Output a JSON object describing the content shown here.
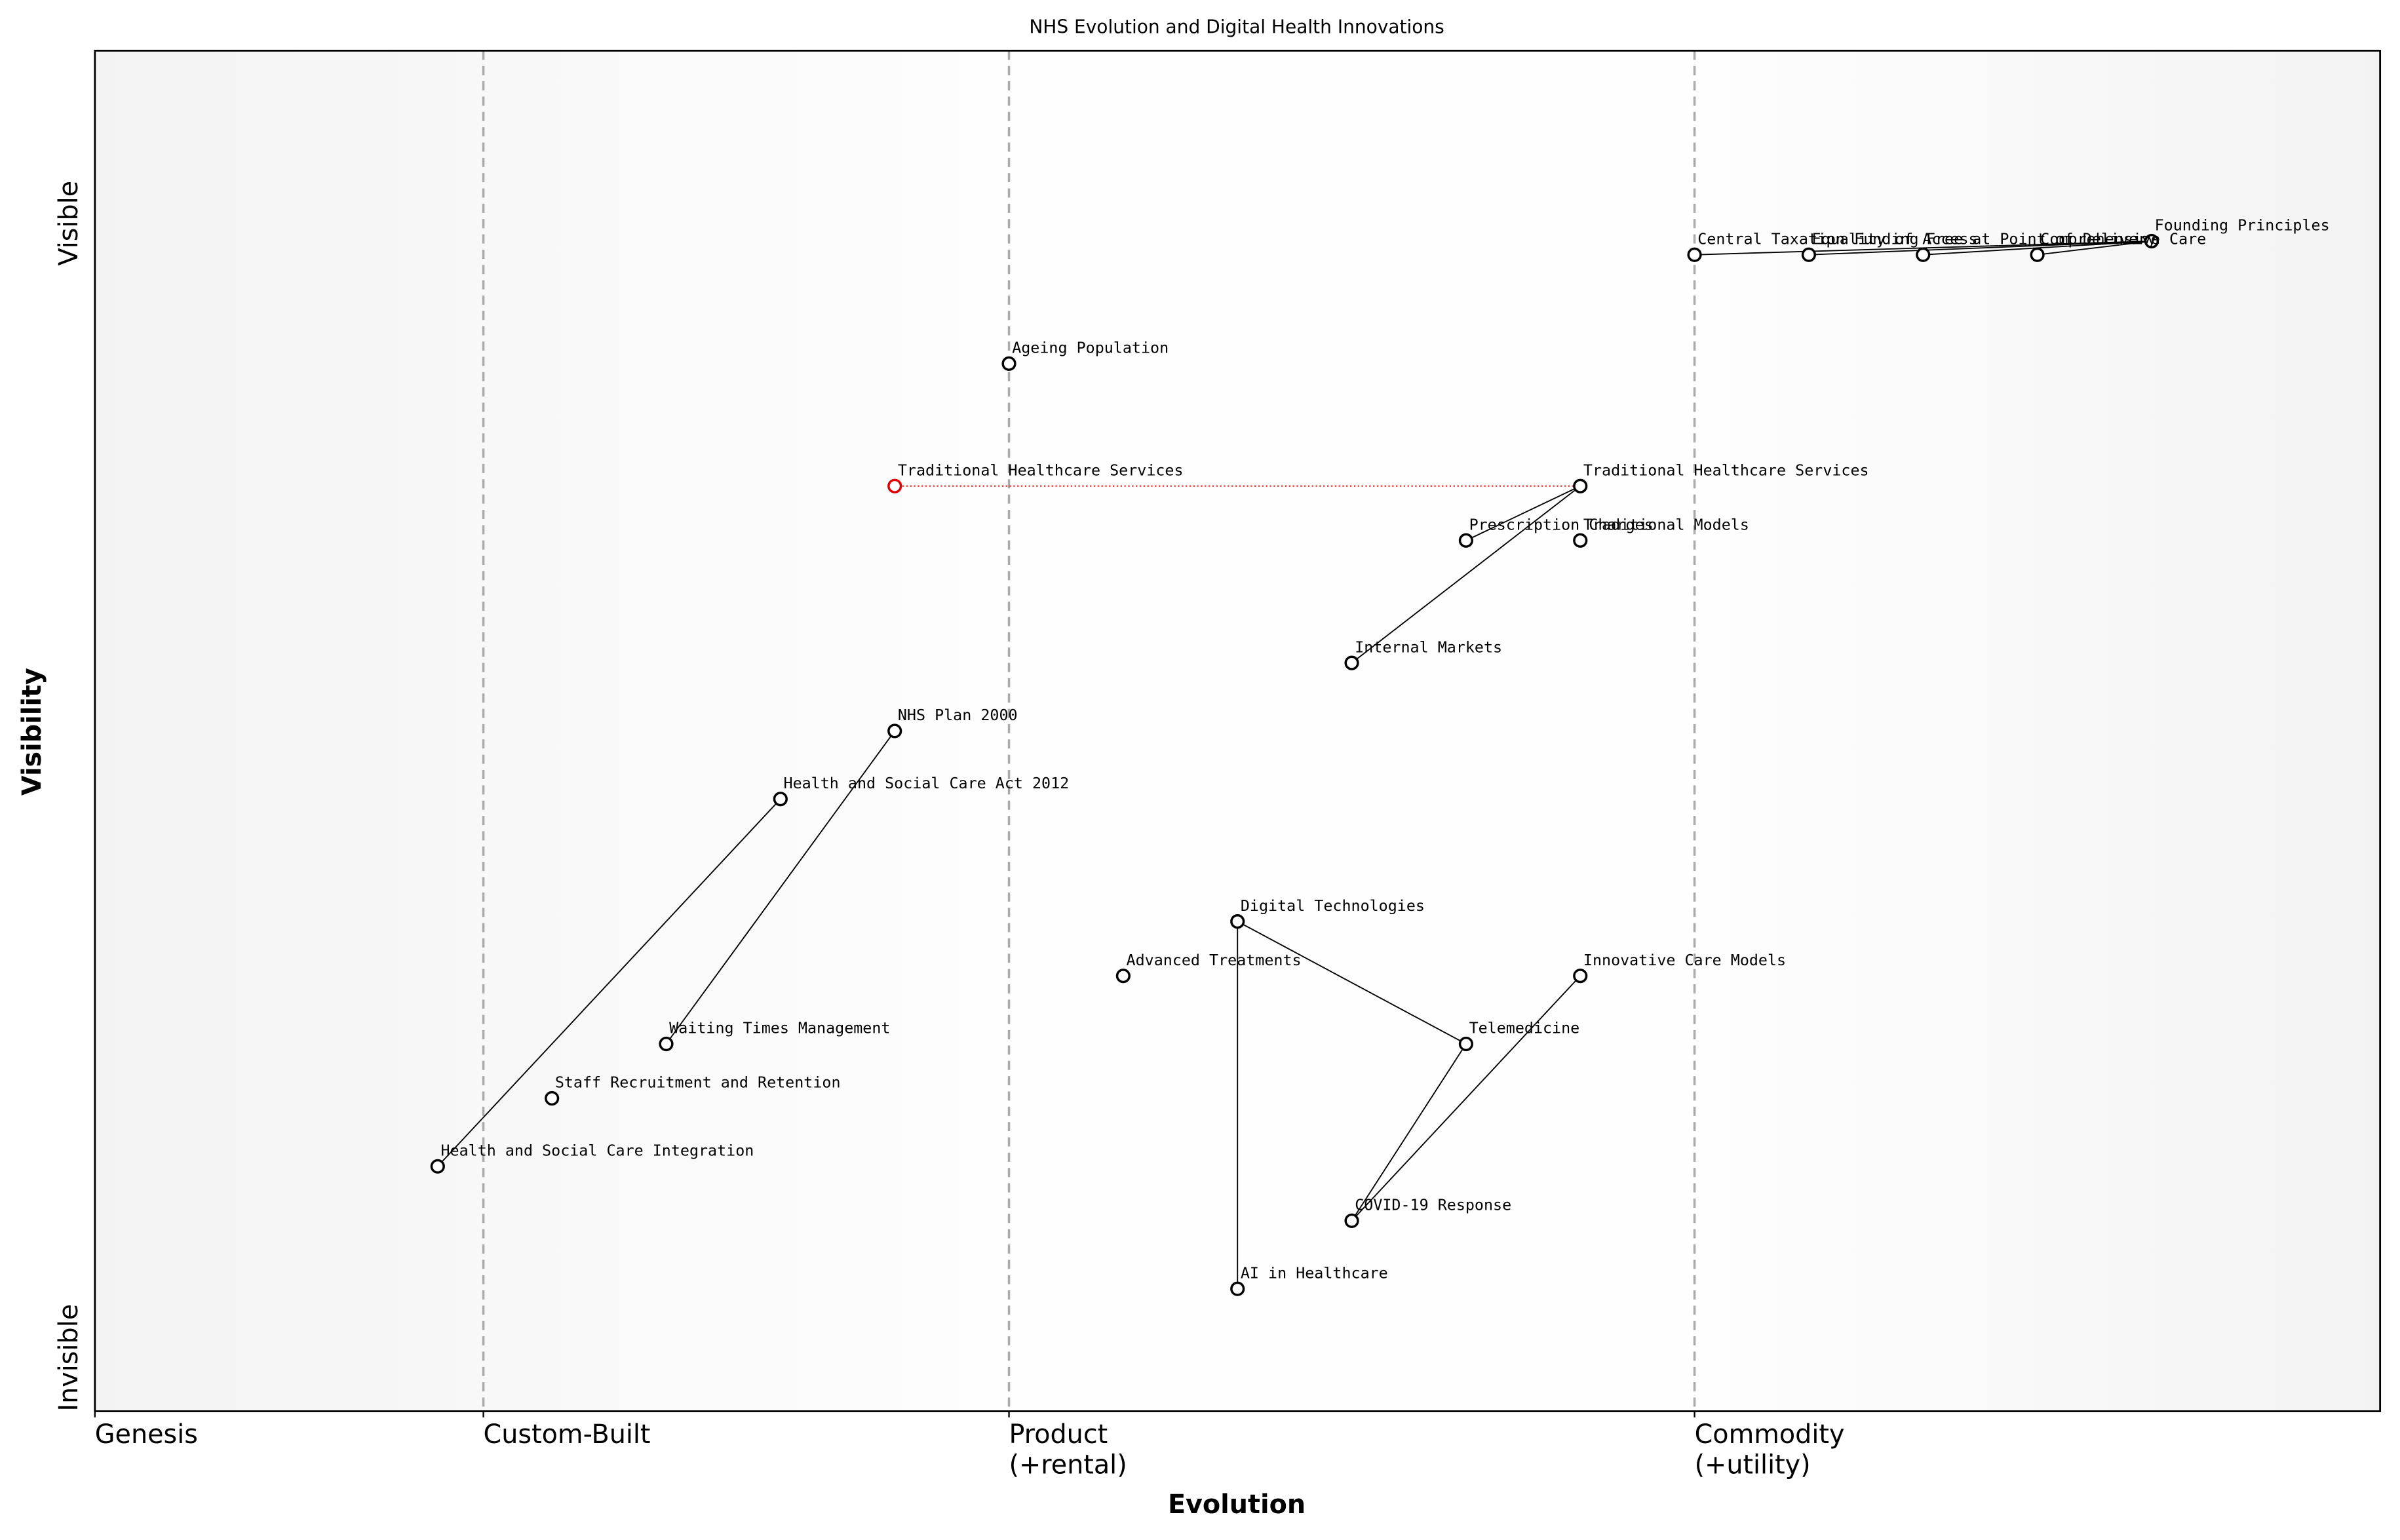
{
  "chart_data": {
    "type": "wardley",
    "title": "NHS Evolution and Digital Health Innovations",
    "xlabel": "Evolution",
    "ylabel": "Visibility",
    "y_ends": [
      "Invisible",
      "Visible"
    ],
    "xlim": [
      0,
      1
    ],
    "ylim": [
      0,
      1
    ],
    "xticks": [
      {
        "value": 0,
        "label": "Genesis"
      },
      {
        "value": 0.17,
        "label": "Custom-Built"
      },
      {
        "value": 0.4,
        "label": "Product\n(+rental)"
      },
      {
        "value": 0.7,
        "label": "Commodity\n(+utility)"
      }
    ],
    "components": [
      {
        "name": "Founding Principles",
        "evolution": 0.9,
        "visibility": 0.86
      },
      {
        "name": "Central Taxation Funding",
        "evolution": 0.7,
        "visibility": 0.85
      },
      {
        "name": "Equality of Access",
        "evolution": 0.75,
        "visibility": 0.85
      },
      {
        "name": "Free at Point of Delivery",
        "evolution": 0.8,
        "visibility": 0.85
      },
      {
        "name": "Comprehensive Care",
        "evolution": 0.85,
        "visibility": 0.85
      },
      {
        "name": "Ageing Population",
        "evolution": 0.4,
        "visibility": 0.77
      },
      {
        "name": "Traditional Healthcare Services",
        "evolution": 0.65,
        "visibility": 0.68
      },
      {
        "name": "Prescription Charges",
        "evolution": 0.6,
        "visibility": 0.64
      },
      {
        "name": "Traditional Models",
        "evolution": 0.65,
        "visibility": 0.64
      },
      {
        "name": "Internal Markets",
        "evolution": 0.55,
        "visibility": 0.55
      },
      {
        "name": "NHS Plan 2000",
        "evolution": 0.35,
        "visibility": 0.5
      },
      {
        "name": "Health and Social Care Act 2012",
        "evolution": 0.3,
        "visibility": 0.45
      },
      {
        "name": "Digital Technologies",
        "evolution": 0.5,
        "visibility": 0.36
      },
      {
        "name": "Advanced Treatments",
        "evolution": 0.45,
        "visibility": 0.32
      },
      {
        "name": "Innovative Care Models",
        "evolution": 0.65,
        "visibility": 0.32
      },
      {
        "name": "Telemedicine",
        "evolution": 0.6,
        "visibility": 0.27
      },
      {
        "name": "Waiting Times Management",
        "evolution": 0.25,
        "visibility": 0.27
      },
      {
        "name": "Staff Recruitment and Retention",
        "evolution": 0.2,
        "visibility": 0.23
      },
      {
        "name": "Health and Social Care Integration",
        "evolution": 0.15,
        "visibility": 0.18
      },
      {
        "name": "COVID-19 Response",
        "evolution": 0.55,
        "visibility": 0.14
      },
      {
        "name": "AI in Healthcare",
        "evolution": 0.5,
        "visibility": 0.09
      }
    ],
    "links": [
      [
        "Founding Principles",
        "Central Taxation Funding"
      ],
      [
        "Founding Principles",
        "Equality of Access"
      ],
      [
        "Founding Principles",
        "Free at Point of Delivery"
      ],
      [
        "Founding Principles",
        "Comprehensive Care"
      ],
      [
        "Traditional Healthcare Services",
        "Prescription Charges"
      ],
      [
        "Traditional Healthcare Services",
        "Internal Markets"
      ],
      [
        "NHS Plan 2000",
        "Waiting Times Management"
      ],
      [
        "Health and Social Care Act 2012",
        "Health and Social Care Integration"
      ],
      [
        "Digital Technologies",
        "Telemedicine"
      ],
      [
        "Digital Technologies",
        "AI in Healthcare"
      ],
      [
        "Telemedicine",
        "COVID-19 Response"
      ],
      [
        "Innovative Care Models",
        "COVID-19 Response"
      ]
    ],
    "evolve": [
      {
        "component": "Traditional Healthcare Services",
        "evolution": 0.35,
        "color": "#e00000"
      }
    ]
  }
}
